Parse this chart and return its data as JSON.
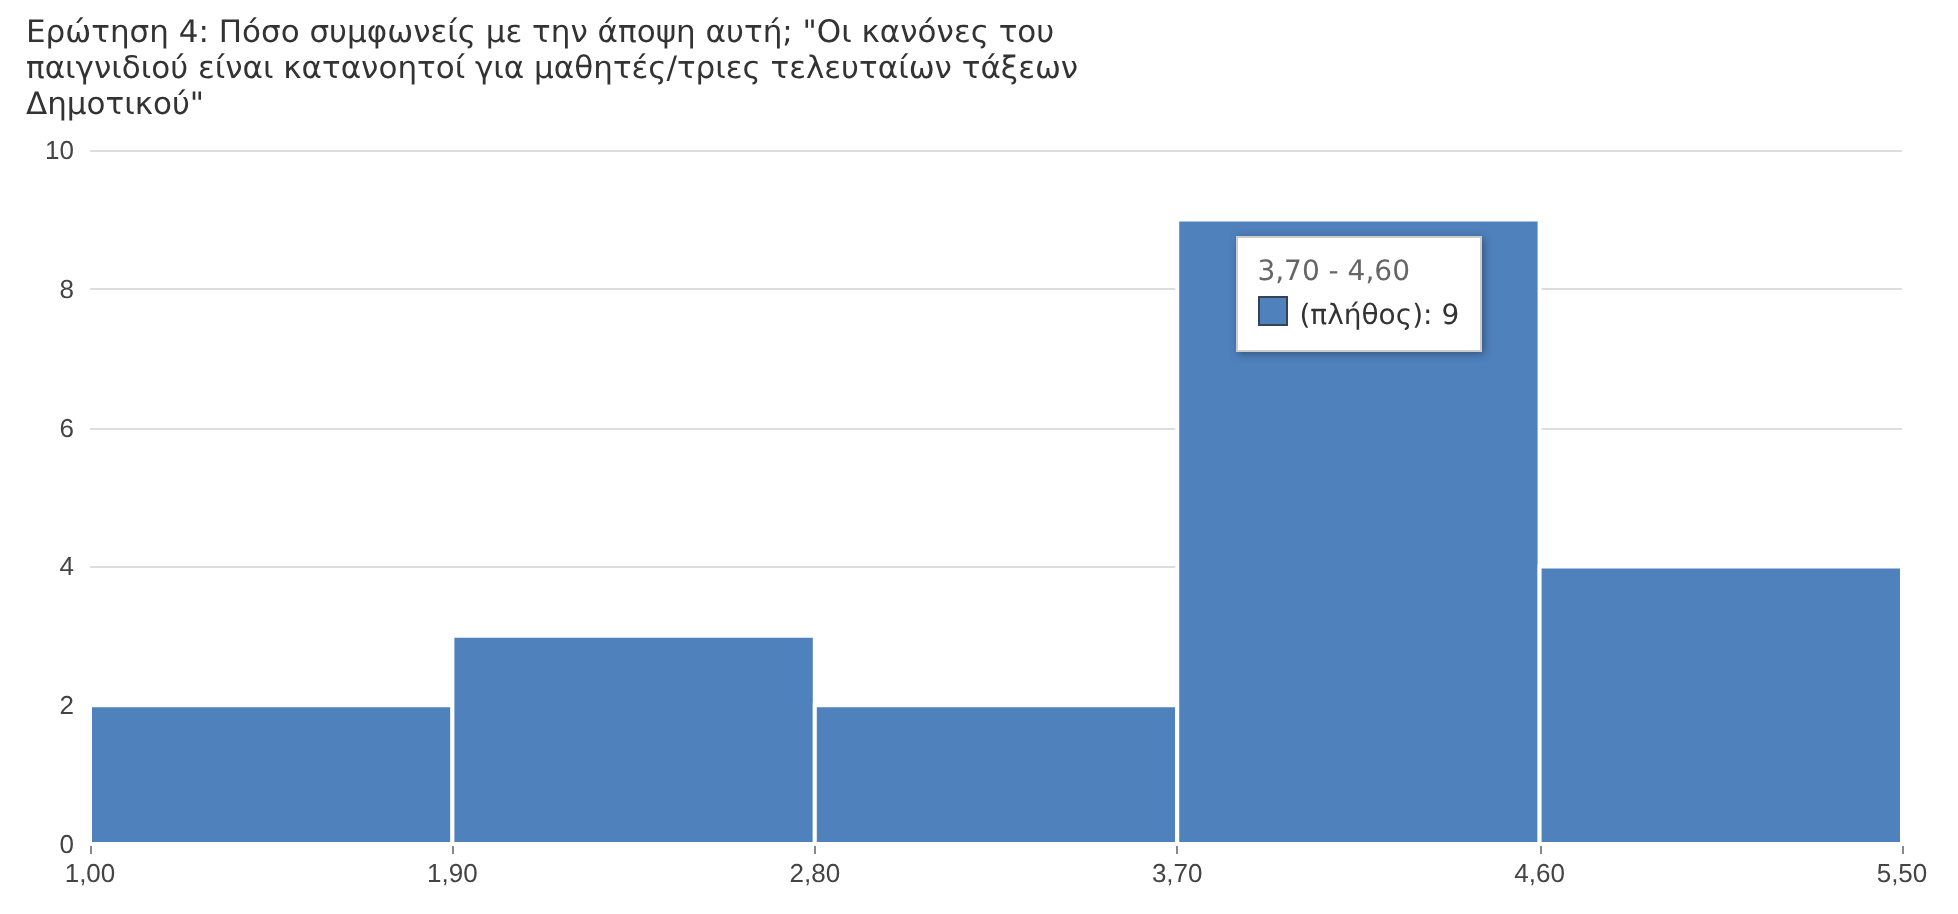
{
  "chart_data": {
    "type": "histogram",
    "title": "Ερώτηση 4: Πόσο συμφωνείς με την άποψη αυτή; \"Οι κανόνες του παιγνιδιού είναι κατανοητοί για μαθητές/τριες τελευταίων τάξεων Δημοτικού\"",
    "bins": [
      1.0,
      1.9,
      2.8,
      3.7,
      4.6,
      5.5
    ],
    "values": [
      2,
      3,
      2,
      9,
      4
    ],
    "color": "#4f81bd",
    "xlim": [
      1.0,
      5.5
    ],
    "xticks": [
      {
        "value": 1.0,
        "label": "1,00"
      },
      {
        "value": 1.9,
        "label": "1,90"
      },
      {
        "value": 2.8,
        "label": "2,80"
      },
      {
        "value": 3.7,
        "label": "3,70"
      },
      {
        "value": 4.6,
        "label": "4,60"
      },
      {
        "value": 5.5,
        "label": "5,50"
      }
    ],
    "ylim": [
      0,
      10
    ],
    "yticks": [
      0,
      2,
      4,
      6,
      8,
      10
    ],
    "grid": "y",
    "annotations": [
      {
        "text": "3,70 - 4,60",
        "x": 4.15,
        "y": 9
      },
      {
        "text": "(πλήθος): 9",
        "x": 4.15,
        "y": 9
      }
    ]
  }
}
